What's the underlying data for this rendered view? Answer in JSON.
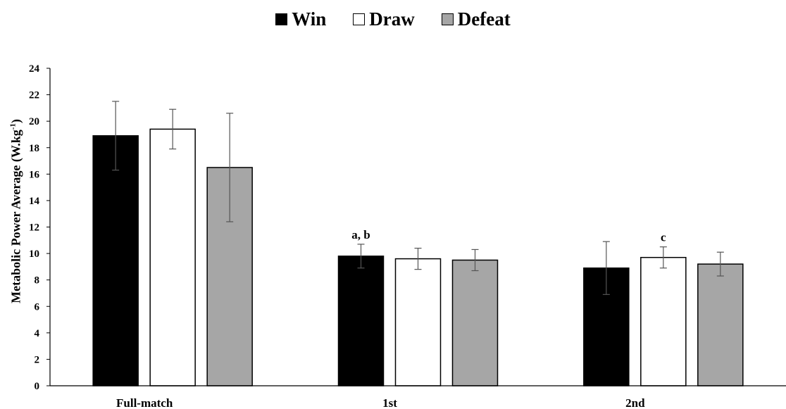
{
  "chart_data": {
    "type": "bar",
    "categories": [
      "Full-match",
      "1st",
      "2nd"
    ],
    "series": [
      {
        "name": "Win",
        "values": [
          18.9,
          9.8,
          8.9
        ],
        "errors": [
          2.6,
          0.9,
          2.0
        ],
        "color": "#000000"
      },
      {
        "name": "Draw",
        "values": [
          19.4,
          9.6,
          9.7
        ],
        "errors": [
          1.5,
          0.8,
          0.8
        ],
        "color": "#ffffff"
      },
      {
        "name": "Defeat",
        "values": [
          16.5,
          9.5,
          9.2
        ],
        "errors": [
          4.1,
          0.8,
          0.9
        ],
        "color": "#a6a6a6"
      }
    ],
    "ylabel_main": "Metabolic Power Average (W.kg",
    "ylabel_sup": "-1",
    "ylabel_close": ")",
    "ylim": [
      0,
      24
    ],
    "yticks": [
      "0",
      "2",
      "4",
      "6",
      "8",
      "10",
      "12",
      "14",
      "16",
      "18",
      "20",
      "22",
      "24"
    ],
    "annotations": [
      {
        "category": 1,
        "series": 0,
        "text": "a, b"
      },
      {
        "category": 2,
        "series": 1,
        "text": "c"
      }
    ],
    "legend_position": "top-center",
    "grid": false
  }
}
